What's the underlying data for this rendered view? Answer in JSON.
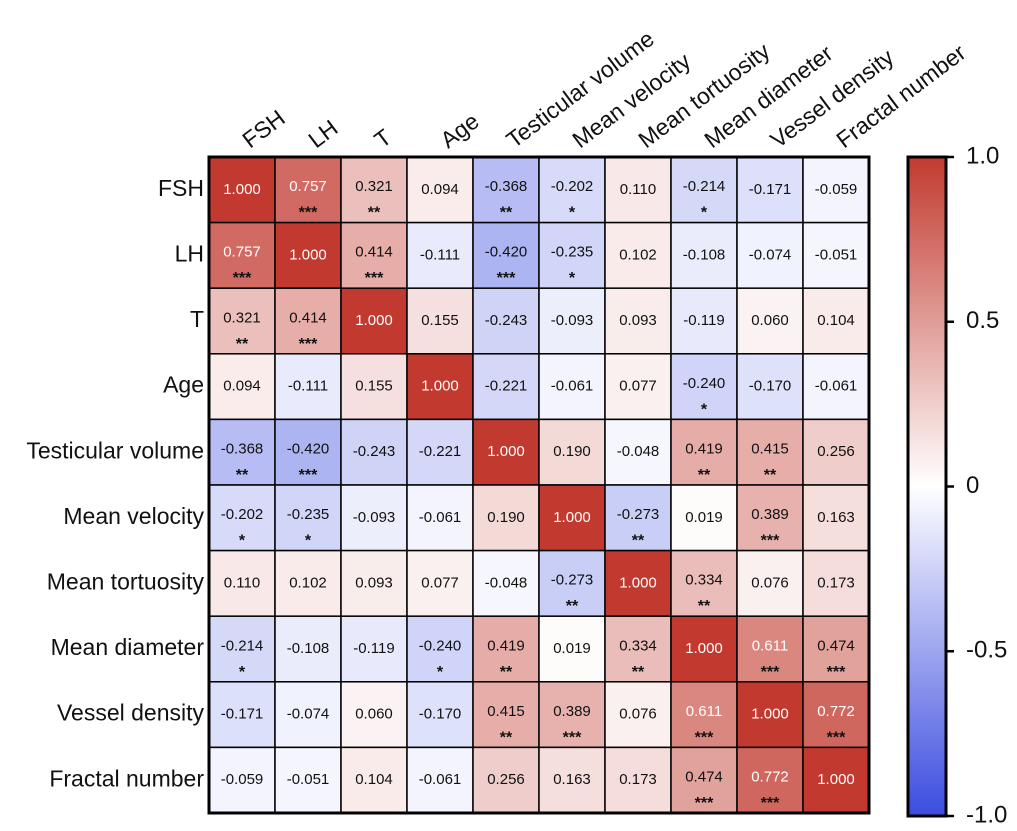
{
  "chart_data": {
    "type": "heatmap",
    "variables": [
      "FSH",
      "LH",
      "T",
      "Age",
      "Testicular volume",
      "Mean velocity",
      "Mean tortuosity",
      "Mean diameter",
      "Vessel density",
      "Fractal number"
    ],
    "values": [
      [
        "1.000",
        "0.757",
        "0.321",
        "0.094",
        "-0.368",
        "-0.202",
        "0.110",
        "-0.214",
        "-0.171",
        "-0.059"
      ],
      [
        "0.757",
        "1.000",
        "0.414",
        "-0.111",
        "-0.420",
        "-0.235",
        "0.102",
        "-0.108",
        "-0.074",
        "-0.051"
      ],
      [
        "0.321",
        "0.414",
        "1.000",
        "0.155",
        "-0.243",
        "-0.093",
        "0.093",
        "-0.119",
        "0.060",
        "0.104"
      ],
      [
        "0.094",
        "-0.111",
        "0.155",
        "1.000",
        "-0.221",
        "-0.061",
        "0.077",
        "-0.240",
        "-0.170",
        "-0.061"
      ],
      [
        "-0.368",
        "-0.420",
        "-0.243",
        "-0.221",
        "1.000",
        "0.190",
        "-0.048",
        "0.419",
        "0.415",
        "0.256"
      ],
      [
        "-0.202",
        "-0.235",
        "-0.093",
        "-0.061",
        "0.190",
        "1.000",
        "-0.273",
        "0.019",
        "0.389",
        "0.163"
      ],
      [
        "0.110",
        "0.102",
        "0.093",
        "0.077",
        "-0.048",
        "-0.273",
        "1.000",
        "0.334",
        "0.076",
        "0.173"
      ],
      [
        "-0.214",
        "-0.108",
        "-0.119",
        "-0.240",
        "0.419",
        "0.019",
        "0.334",
        "1.000",
        "0.611",
        "0.474"
      ],
      [
        "-0.171",
        "-0.074",
        "0.060",
        "-0.170",
        "0.415",
        "0.389",
        "0.076",
        "0.611",
        "1.000",
        "0.772"
      ],
      [
        "-0.059",
        "-0.051",
        "0.104",
        "-0.061",
        "0.256",
        "0.163",
        "0.173",
        "0.474",
        "0.772",
        "1.000"
      ]
    ],
    "significance": [
      [
        "",
        "***",
        "**",
        "",
        "**",
        "*",
        "",
        "*",
        "",
        ""
      ],
      [
        "***",
        "",
        "***",
        "",
        "***",
        "*",
        "",
        "",
        "",
        ""
      ],
      [
        "**",
        "***",
        "",
        "",
        "",
        "",
        "",
        "",
        "",
        ""
      ],
      [
        "",
        "",
        "",
        "",
        "",
        "",
        "",
        "*",
        "",
        ""
      ],
      [
        "**",
        "***",
        "",
        "",
        "",
        "",
        "",
        "**",
        "**",
        ""
      ],
      [
        "*",
        "*",
        "",
        "",
        "",
        "",
        "**",
        "",
        "***",
        ""
      ],
      [
        "",
        "",
        "",
        "",
        "",
        "**",
        "",
        "**",
        "",
        ""
      ],
      [
        "*",
        "",
        "",
        "*",
        "**",
        "",
        "**",
        "",
        "***",
        "***"
      ],
      [
        "",
        "",
        "",
        "",
        "**",
        "***",
        "",
        "***",
        "",
        "***"
      ],
      [
        "",
        "",
        "",
        "",
        "",
        "",
        "",
        "***",
        "***",
        ""
      ]
    ],
    "colorbar": {
      "range": [
        -1.0,
        1.0
      ],
      "ticks": [
        {
          "value": 1.0,
          "label": "1.0"
        },
        {
          "value": 0.5,
          "label": "0.5"
        },
        {
          "value": 0.0,
          "label": "0"
        },
        {
          "value": -0.5,
          "label": "-0.5"
        },
        {
          "value": -1.0,
          "label": "-1.0"
        }
      ],
      "colors": {
        "low": "#3b4ce0",
        "mid": "#ffffff",
        "high": "#c23a2f"
      }
    }
  }
}
